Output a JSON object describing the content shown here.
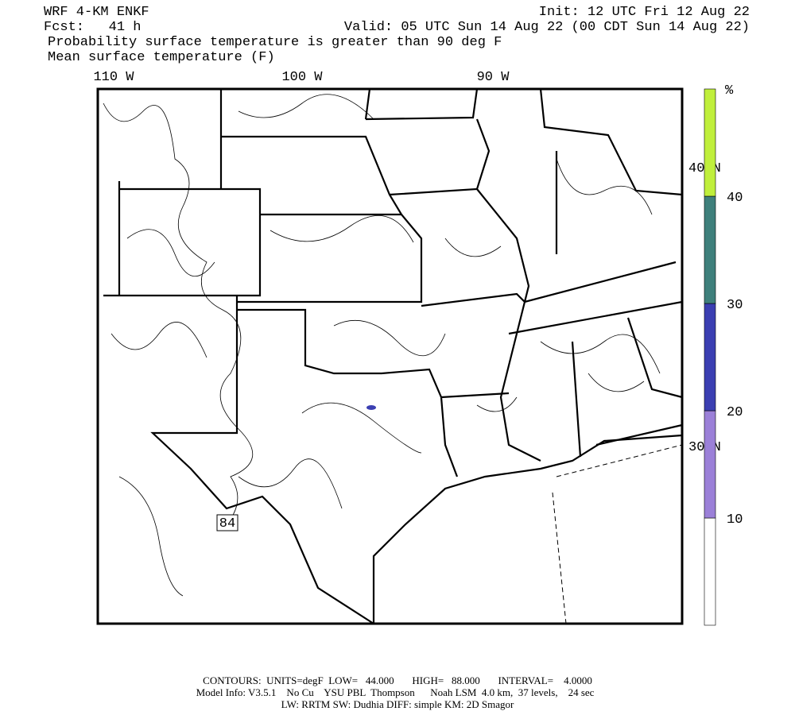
{
  "header": {
    "model": "WRF 4-KM ENKF",
    "forecast": "Fcst:   41 h",
    "init": "Init: 12 UTC Fri 12 Aug 22",
    "valid": "Valid: 05 UTC Sun 14 Aug 22 (00 CDT Sun 14 Aug 22)",
    "field1": "Probability surface temperature is greater than 90 deg F",
    "field2": "Mean surface temperature (F)"
  },
  "map": {
    "lon_labels": [
      "110 W",
      "100 W",
      "90 W"
    ],
    "lat_labels": [
      "40 N",
      "30 N"
    ],
    "contour_label": "84"
  },
  "colorbar": {
    "unit": "%",
    "levels": [
      10,
      20,
      30,
      40
    ],
    "colors": [
      "#ffffff",
      "#9b80d8",
      "#3b3fb2",
      "#3f807c",
      "#c0ef3c"
    ]
  },
  "footer": {
    "line1": "CONTOURS:  UNITS=degF  LOW=   44.000       HIGH=   88.000       INTERVAL=    4.0000",
    "line2": "Model Info: V3.5.1    No Cu    YSU PBL  Thompson      Noah LSM  4.0 km,  37 levels,    24 sec",
    "line3": "LW: RRTM SW: Dudhia  DIFF: simple KM: 2D Smagor"
  }
}
